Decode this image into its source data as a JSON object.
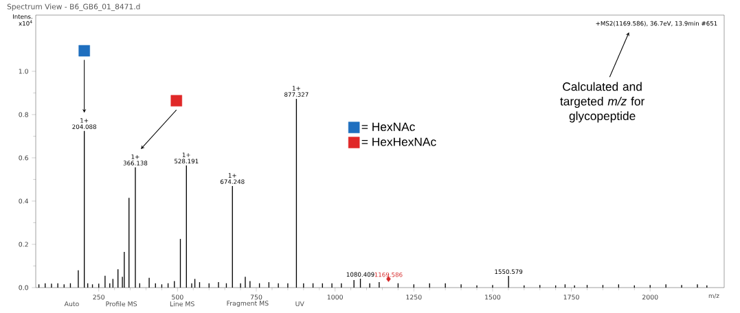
{
  "chart_data": {
    "type": "bar",
    "title": "Spectrum View - B6_GB6_01_8471.d",
    "subtitle": "+MS2(1169.586), 36.7eV, 13.9min #651",
    "xlabel": "m/z",
    "ylabel": "Intens. x10$^{4}$",
    "xlim": [
      50,
      2235
    ],
    "ylim": [
      0,
      1.26
    ],
    "xticks": [
      250,
      500,
      750,
      1000,
      1250,
      1500,
      1750,
      2000
    ],
    "yticks": [
      {
        "value": 0,
        "label": "0.0"
      },
      {
        "value": 0.2,
        "label": "0.2"
      },
      {
        "value": 0.4,
        "label": "0.4"
      },
      {
        "value": 0.6,
        "label": "0.6"
      },
      {
        "value": 0.8,
        "label": "0.8"
      },
      {
        "value": 1.0,
        "label": "1.0"
      }
    ],
    "legend": "center",
    "series": [
      {
        "color": "#000000",
        "x": [
          60,
          80,
          100,
          120,
          140,
          160,
          185,
          204.088,
          215,
          230,
          250,
          270,
          285,
          295,
          311,
          325,
          331,
          346,
          366.138,
          380,
          410,
          430,
          450,
          470,
          490,
          509,
          528.191,
          545,
          555,
          570,
          600,
          630,
          655,
          674.248,
          700,
          715,
          730,
          760,
          790,
          820,
          850,
          877.327,
          900,
          930,
          960,
          990,
          1020,
          1060,
          1080.409,
          1110,
          1140,
          1169.586,
          1200,
          1250,
          1300,
          1350,
          1400,
          1450,
          1500,
          1550.579,
          1600,
          1650,
          1700,
          1730,
          1760,
          1800,
          1850,
          1900,
          1950,
          2000,
          2050,
          2100,
          2150,
          2180
        ],
        "values": [
          0.015,
          0.02,
          0.018,
          0.02,
          0.015,
          0.02,
          0.08,
          0.724,
          0.02,
          0.015,
          0.018,
          0.055,
          0.02,
          0.04,
          0.085,
          0.05,
          0.165,
          0.415,
          0.556,
          0.02,
          0.045,
          0.02,
          0.015,
          0.02,
          0.03,
          0.225,
          0.565,
          0.02,
          0.04,
          0.025,
          0.02,
          0.025,
          0.02,
          0.47,
          0.02,
          0.05,
          0.03,
          0.02,
          0.025,
          0.02,
          0.02,
          0.873,
          0.02,
          0.02,
          0.02,
          0.02,
          0.02,
          0.035,
          0.041,
          0.02,
          0.025,
          null,
          0.02,
          0.015,
          0.02,
          0.02,
          0.015,
          0.01,
          0.012,
          0.054,
          0.01,
          0.012,
          0.01,
          0.015,
          0.01,
          0.012,
          0.012,
          0.015,
          0.01,
          0.012,
          0.015,
          0.012,
          0.015,
          0.01
        ]
      },
      {
        "type": "scatter",
        "marker": "diamond",
        "color": "#d62828",
        "x": [
          1169.586
        ],
        "values": [
          0.04
        ]
      },
      {
        "type": "scatter",
        "marker": "square",
        "name": "= HexNAc",
        "color": "#1f6fbf",
        "x": [
          204.088
        ],
        "values": [
          1.095
        ]
      },
      {
        "type": "scatter",
        "marker": "square",
        "name": "= HexHexNAc",
        "color": "#e02828",
        "x": [
          496.5
        ],
        "values": [
          0.864
        ]
      }
    ],
    "annotations": [
      "Calculated and targeted *m/z* for glycopeptide",
      "Auto",
      "Profile MS",
      "Line MS",
      "Fragment MS",
      "UV",
      {
        "text": "204.088",
        "x": 204.088,
        "y": 0.724
      },
      {
        "text": "366.138",
        "x": 366.138,
        "y": 0.556
      },
      {
        "text": "528.191",
        "x": 528.191,
        "y": 0.565
      },
      {
        "text": "674.248",
        "x": 674.248,
        "y": 0.47
      },
      {
        "text": "877.327",
        "x": 877.327,
        "y": 0.873
      },
      {
        "text": "1080.409",
        "x": 1080.409,
        "y": 0.041
      },
      {
        "text": "1169.586",
        "x": 1169.586,
        "y": 0.04
      },
      {
        "text": "1550.579",
        "x": 1550.579,
        "y": 0.054
      },
      {
        "text": "1+",
        "x": 204.088,
        "y": 0.724
      },
      {
        "text": "1+",
        "x": 366.138,
        "y": 0.556
      },
      {
        "text": "1+",
        "x": 528.191,
        "y": 0.565
      },
      {
        "text": "1+",
        "x": 674.248,
        "y": 0.47
      },
      {
        "text": "1+",
        "x": 877.327,
        "y": 0.873
      }
    ]
  }
}
